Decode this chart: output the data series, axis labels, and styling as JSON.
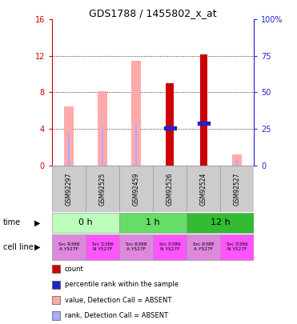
{
  "title": "GDS1788 / 1455802_x_at",
  "samples": [
    "GSM92297",
    "GSM92525",
    "GSM92459",
    "GSM92526",
    "GSM92524",
    "GSM92527"
  ],
  "count_values": [
    null,
    null,
    null,
    9.0,
    12.2,
    null
  ],
  "rank_values": [
    null,
    null,
    null,
    4.1,
    4.6,
    null
  ],
  "absent_value": [
    6.5,
    8.1,
    11.5,
    null,
    null,
    1.2
  ],
  "absent_rank": [
    3.5,
    4.3,
    4.5,
    null,
    null,
    0.55
  ],
  "ylim": [
    0,
    16
  ],
  "yticks_left": [
    0,
    4,
    8,
    12,
    16
  ],
  "yticks_right": [
    0,
    25,
    50,
    75,
    100
  ],
  "ytick_labels_left": [
    "0",
    "4",
    "8",
    "12",
    "16"
  ],
  "ytick_labels_right": [
    "0",
    "25",
    "50",
    "75",
    "100%"
  ],
  "time_groups": [
    {
      "label": "0 h",
      "cols": [
        0,
        1
      ],
      "color": "#bbffbb"
    },
    {
      "label": "1 h",
      "cols": [
        2,
        3
      ],
      "color": "#66dd66"
    },
    {
      "label": "12 h",
      "cols": [
        4,
        5
      ],
      "color": "#33bb33"
    }
  ],
  "cell_lines": [
    {
      "label": "Src R388\nA Y527F",
      "color": "#dd88dd"
    },
    {
      "label": "Src D386\nN Y527F",
      "color": "#ff44ff"
    },
    {
      "label": "Src R388\nA Y527F",
      "color": "#dd88dd"
    },
    {
      "label": "Src D386\nN Y527F",
      "color": "#ff44ff"
    },
    {
      "label": "Src R388\nA Y527F",
      "color": "#dd88dd"
    },
    {
      "label": "Src D386\nN Y527F",
      "color": "#ff44ff"
    }
  ],
  "color_count": "#cc0000",
  "color_rank": "#2222cc",
  "color_absent_value": "#ffaaaa",
  "color_absent_rank": "#aaaaff",
  "color_left_axis": "#cc0000",
  "color_right_axis": "#2222cc",
  "sample_bg_color": "#cccccc",
  "sample_border_color": "#999999",
  "legend_items": [
    {
      "color": "#cc0000",
      "label": "count"
    },
    {
      "color": "#2222cc",
      "label": "percentile rank within the sample"
    },
    {
      "color": "#ffaaaa",
      "label": "value, Detection Call = ABSENT"
    },
    {
      "color": "#aaaaff",
      "label": "rank, Detection Call = ABSENT"
    }
  ]
}
